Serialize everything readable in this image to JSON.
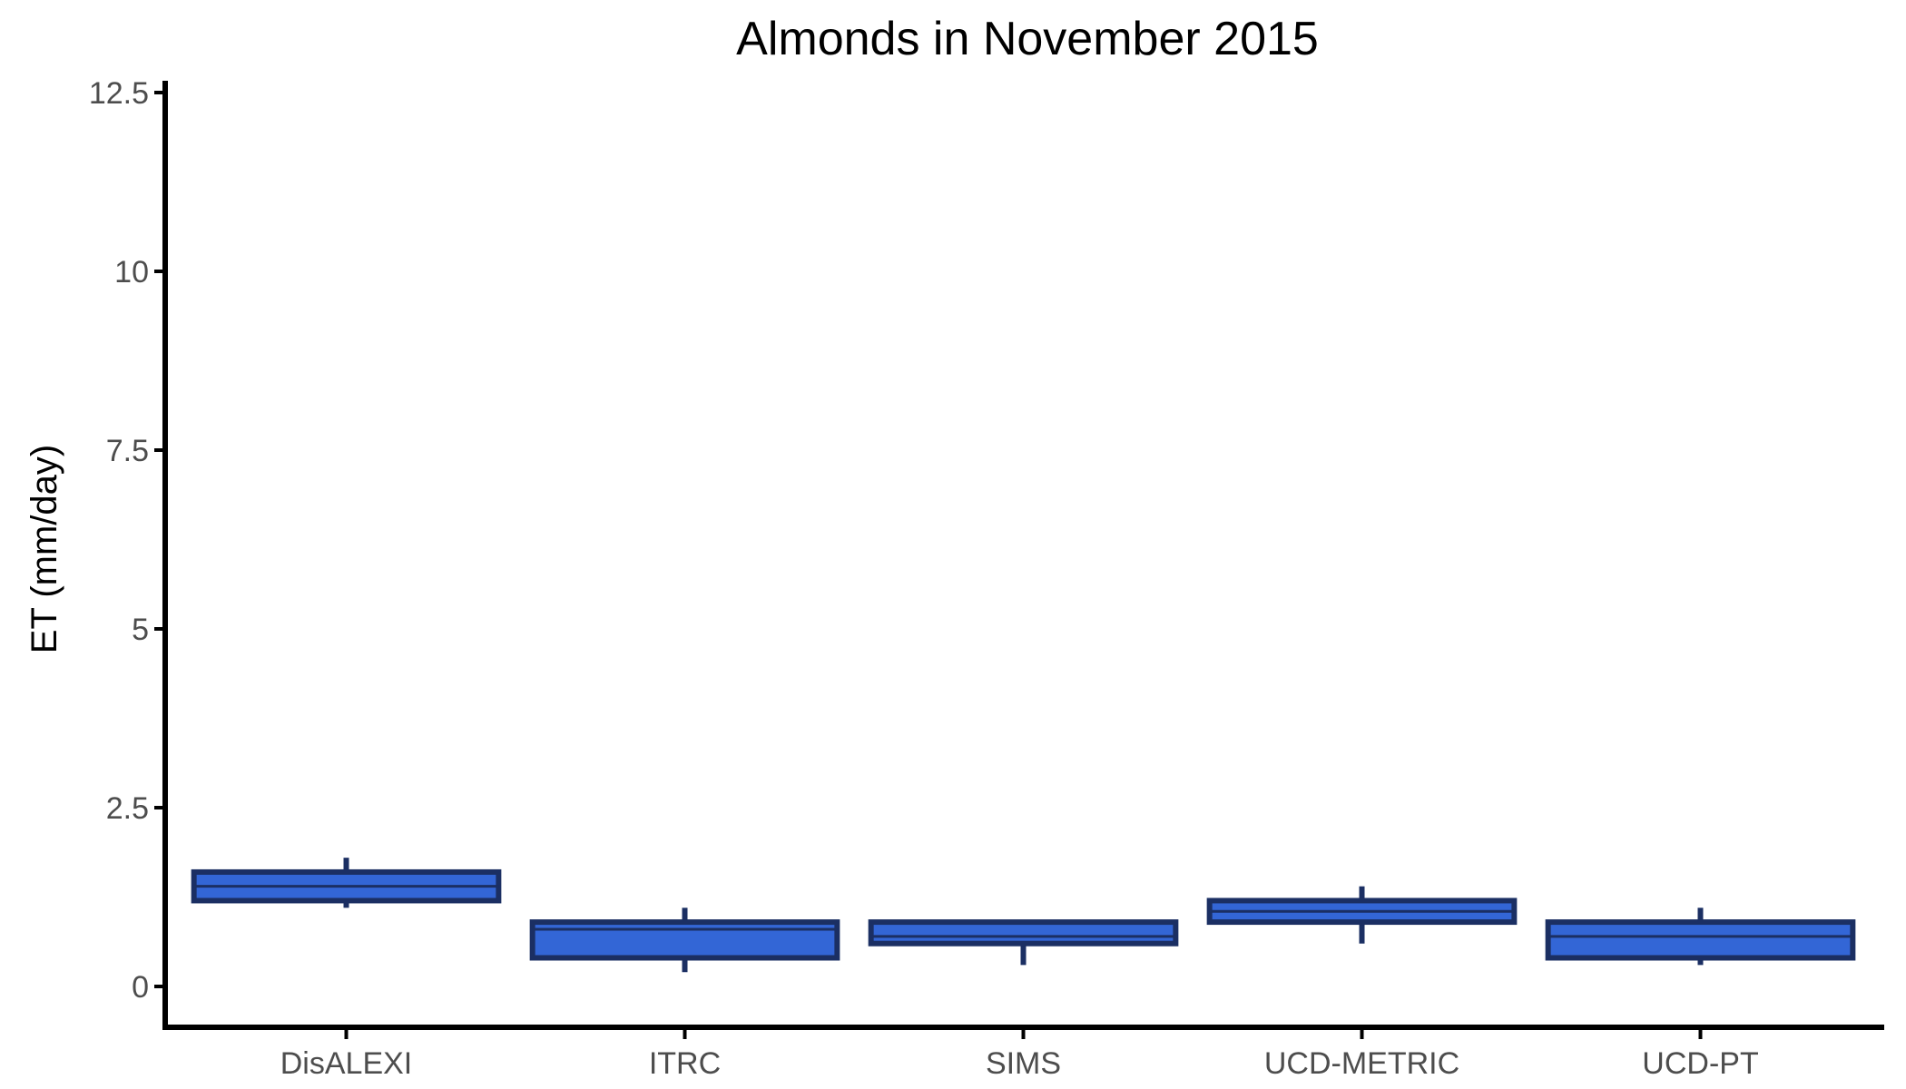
{
  "chart_data": {
    "type": "boxplot",
    "title": "Almonds in November 2015",
    "xlabel": "",
    "ylabel": "ET (mm/day)",
    "ylim": [
      -0.55,
      12.6
    ],
    "y_ticks": [
      0,
      2.5,
      5,
      7.5,
      10,
      12.5
    ],
    "y_tick_labels": [
      "0",
      "2.5",
      "5",
      "7.5",
      "10",
      "12.5"
    ],
    "grid": false,
    "legend": "none",
    "categories": [
      "DisALEXI",
      "ITRC",
      "SIMS",
      "UCD-METRIC",
      "UCD-PT"
    ],
    "boxes": [
      {
        "category": "DisALEXI",
        "whisker_low": 1.1,
        "q1": 1.2,
        "median": 1.4,
        "q3": 1.6,
        "whisker_high": 1.8
      },
      {
        "category": "ITRC",
        "whisker_low": 0.2,
        "q1": 0.4,
        "median": 0.8,
        "q3": 0.9,
        "whisker_high": 1.1
      },
      {
        "category": "SIMS",
        "whisker_low": 0.3,
        "q1": 0.6,
        "median": 0.7,
        "q3": 0.9,
        "whisker_high": 0.9
      },
      {
        "category": "UCD-METRIC",
        "whisker_low": 0.6,
        "q1": 0.9,
        "median": 1.05,
        "q3": 1.2,
        "whisker_high": 1.4
      },
      {
        "category": "UCD-PT",
        "whisker_low": 0.3,
        "q1": 0.4,
        "median": 0.7,
        "q3": 0.9,
        "whisker_high": 1.1
      }
    ],
    "colors": {
      "box_fill": "#3366d6",
      "box_outline": "#1b2f63",
      "axis": "#000000",
      "tick_text": "#4d4d4d"
    }
  }
}
